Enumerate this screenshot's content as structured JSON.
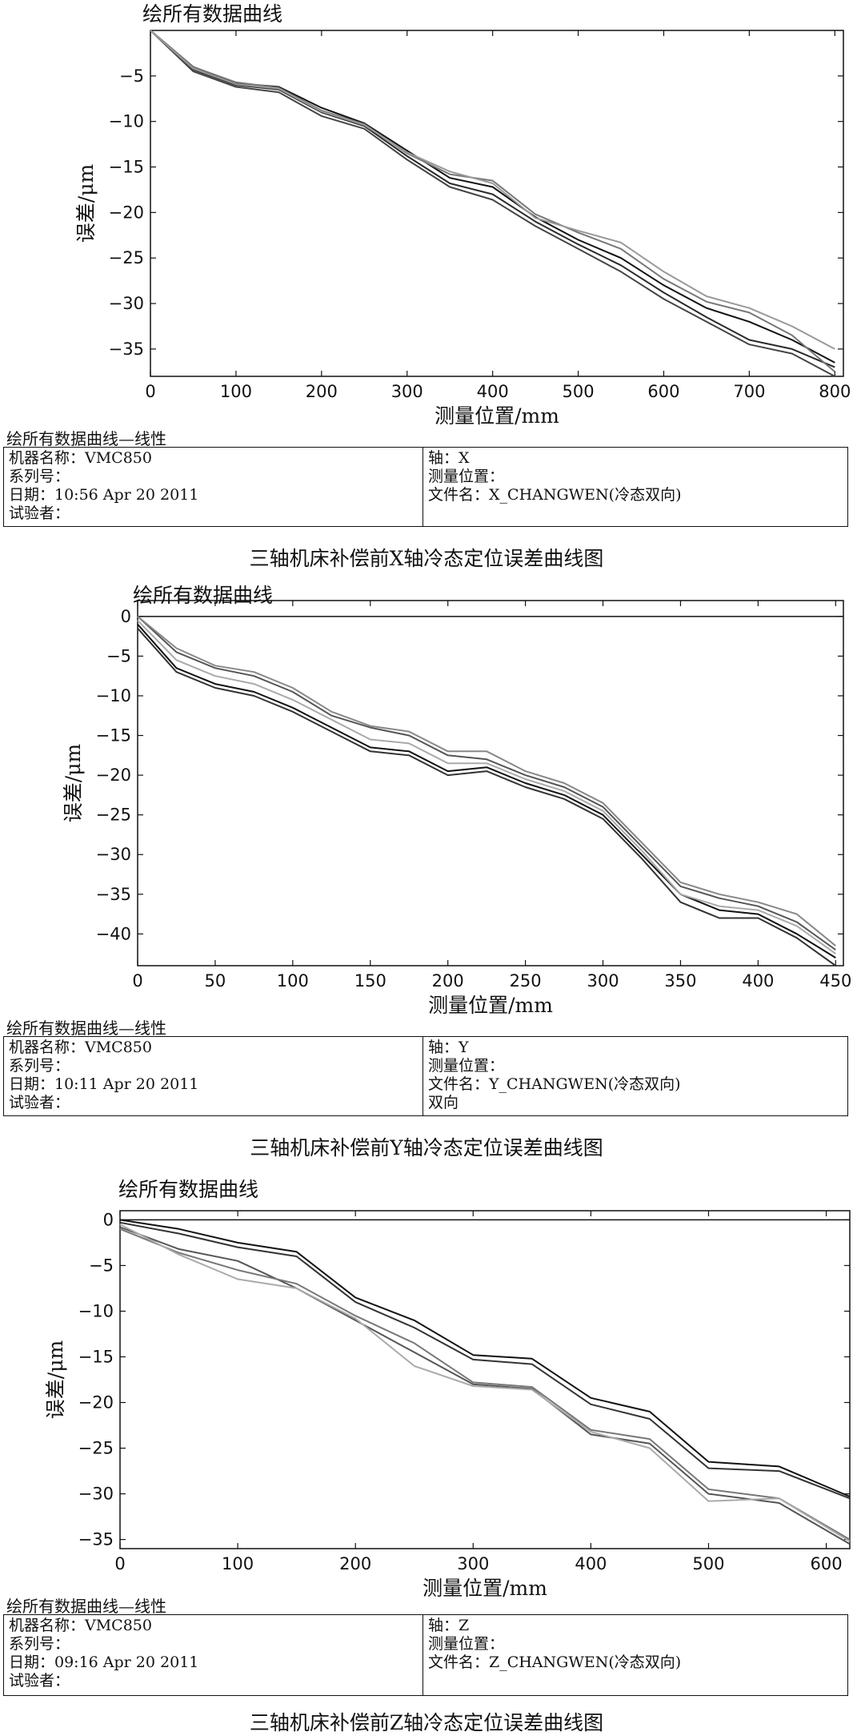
{
  "chart_data": [
    {
      "type": "line",
      "title": "绘所有数据曲线",
      "xlabel": "测量位置/mm",
      "ylabel": "误差/μm",
      "xlim": [
        0,
        810
      ],
      "ylim": [
        -38,
        0
      ],
      "xticks": [
        0,
        100,
        200,
        300,
        400,
        500,
        600,
        700,
        800
      ],
      "yticks": [
        -5,
        -10,
        -15,
        -20,
        -25,
        -30,
        -35
      ],
      "grid": false,
      "series": [
        {
          "x": [
            0,
            50,
            100,
            150,
            200,
            250,
            300,
            350,
            400,
            450,
            500,
            550,
            600,
            650,
            700,
            750,
            800
          ],
          "y": [
            0,
            -4,
            -5.8,
            -6.2,
            -8.5,
            -10.2,
            -13.2,
            -16.2,
            -17.2,
            -20.5,
            -23,
            -25,
            -28,
            -30.5,
            -32,
            -34,
            -36.5
          ],
          "color": "#111111"
        },
        {
          "x": [
            0,
            50,
            100,
            150,
            200,
            250,
            300,
            350,
            400,
            450,
            500,
            550,
            600,
            650,
            700,
            750,
            800
          ],
          "y": [
            0,
            -4.3,
            -6,
            -6.5,
            -9,
            -10.5,
            -13.8,
            -16.8,
            -18,
            -21,
            -23.5,
            -25.8,
            -28.8,
            -31.5,
            -34,
            -35,
            -37
          ],
          "color": "#2a2a2a"
        },
        {
          "x": [
            0,
            50,
            100,
            150,
            200,
            250,
            300,
            350,
            400,
            450,
            500,
            550,
            600,
            650,
            700,
            750,
            800
          ],
          "y": [
            0,
            -4.5,
            -6.2,
            -6.8,
            -9.4,
            -10.8,
            -14.2,
            -17.2,
            -18.6,
            -21.5,
            -24,
            -26.5,
            -29.5,
            -32,
            -34.5,
            -35.5,
            -38
          ],
          "color": "#444444"
        },
        {
          "x": [
            0,
            50,
            100,
            150,
            200,
            250,
            300,
            350,
            400,
            450,
            500,
            550,
            600,
            650,
            700,
            750,
            800
          ],
          "y": [
            0,
            -4,
            -5.7,
            -6.3,
            -8.8,
            -10.3,
            -13.5,
            -15.8,
            -16.5,
            -20.2,
            -22.2,
            -24,
            -27.3,
            -29.8,
            -31,
            -33.5,
            -37.5
          ],
          "color": "#777777"
        },
        {
          "x": [
            0,
            50,
            100,
            150,
            200,
            250,
            300,
            350,
            400,
            450,
            500,
            550,
            600,
            650,
            700,
            750,
            800
          ],
          "y": [
            0,
            -4.2,
            -5.9,
            -6.4,
            -8.9,
            -10.4,
            -13.4,
            -15.5,
            -16.8,
            -20.6,
            -22,
            -23.3,
            -26.5,
            -29.2,
            -30.5,
            -32.5,
            -35
          ],
          "color": "#999999"
        }
      ],
      "info_title": "绘所有数据曲线—线性",
      "info_left": [
        "机器名称：VMC850",
        "系列号：",
        "日期：10:56 Apr 20 2011",
        "试验者："
      ],
      "info_right": [
        "轴：X",
        "测量位置：",
        "文件名：X_CHANGWEN(冷态双向)"
      ],
      "caption": "三轴机床补偿前X轴冷态定位误差曲线图"
    },
    {
      "type": "line",
      "title": "绘所有数据曲线",
      "xlabel": "测量位置/mm",
      "ylabel": "误差/μm",
      "xlim": [
        0,
        455
      ],
      "ylim": [
        -44,
        2
      ],
      "xticks": [
        0,
        50,
        100,
        150,
        200,
        250,
        300,
        350,
        400,
        450
      ],
      "yticks": [
        0,
        -5,
        -10,
        -15,
        -20,
        -25,
        -30,
        -35,
        -40
      ],
      "grid": false,
      "series": [
        {
          "x": [
            0,
            25,
            50,
            75,
            100,
            125,
            150,
            175,
            200,
            225,
            250,
            275,
            300,
            325,
            350,
            375,
            400,
            425,
            450
          ],
          "y": [
            -1,
            -6.5,
            -8.5,
            -9.5,
            -11.5,
            -14,
            -16.5,
            -17,
            -19.5,
            -19,
            -21,
            -22.5,
            -25,
            -30,
            -35,
            -37,
            -37.5,
            -40,
            -43
          ],
          "color": "#111111"
        },
        {
          "x": [
            0,
            25,
            50,
            75,
            100,
            125,
            150,
            175,
            200,
            225,
            250,
            275,
            300,
            325,
            350,
            375,
            400,
            425,
            450
          ],
          "y": [
            -1.5,
            -7,
            -9,
            -10,
            -12,
            -14.5,
            -17,
            -17.5,
            -20,
            -19.5,
            -21.5,
            -23,
            -25.5,
            -30.5,
            -36,
            -38,
            -38,
            -40.5,
            -44
          ],
          "color": "#333333"
        },
        {
          "x": [
            0,
            25,
            50,
            75,
            100,
            125,
            150,
            175,
            200,
            225,
            250,
            275,
            300,
            325,
            350,
            375,
            400,
            425,
            450
          ],
          "y": [
            0,
            -4.5,
            -6.5,
            -7.5,
            -9.5,
            -12.5,
            -14,
            -15,
            -17.5,
            -18,
            -20,
            -21.5,
            -24,
            -29,
            -34,
            -35.5,
            -36.5,
            -38.5,
            -42
          ],
          "color": "#555555"
        },
        {
          "x": [
            0,
            25,
            50,
            75,
            100,
            125,
            150,
            175,
            200,
            225,
            250,
            275,
            300,
            325,
            350,
            375,
            400,
            425,
            450
          ],
          "y": [
            0,
            -4,
            -6.2,
            -7,
            -9,
            -12,
            -13.8,
            -14.5,
            -17,
            -17,
            -19.5,
            -21,
            -23.5,
            -28.5,
            -33.5,
            -35,
            -36,
            -37.5,
            -41.5
          ],
          "color": "#888888"
        },
        {
          "x": [
            0,
            25,
            50,
            75,
            100,
            125,
            150,
            175,
            200,
            225,
            250,
            275,
            300,
            325,
            350,
            375,
            400,
            425,
            450
          ],
          "y": [
            -0.5,
            -5.5,
            -7.5,
            -8.5,
            -10.5,
            -13,
            -15.5,
            -16,
            -18.5,
            -18.5,
            -20.5,
            -22,
            -24.5,
            -29.5,
            -35,
            -36.5,
            -37,
            -39,
            -42.5
          ],
          "color": "#aaaaaa"
        }
      ],
      "info_title": "绘所有数据曲线—线性",
      "info_left": [
        "机器名称：VMC850",
        "系列号：",
        "日期：10:11 Apr 20 2011",
        "试验者："
      ],
      "info_right": [
        "轴：Y",
        "测量位置：",
        "文件名：Y_CHANGWEN(冷态双向)",
        "双向"
      ],
      "caption": "三轴机床补偿前Y轴冷态定位误差曲线图"
    },
    {
      "type": "line",
      "title": "绘所有数据曲线",
      "xlabel": "测量位置/mm",
      "ylabel": "误差/μm",
      "xlim": [
        0,
        620
      ],
      "ylim": [
        -36,
        1
      ],
      "xticks": [
        0,
        100,
        200,
        300,
        400,
        500,
        600
      ],
      "yticks": [
        0,
        -5,
        -10,
        -15,
        -20,
        -25,
        -30,
        -35
      ],
      "grid": false,
      "series": [
        {
          "x": [
            0,
            50,
            100,
            150,
            200,
            250,
            300,
            350,
            400,
            450,
            500,
            560,
            620
          ],
          "y": [
            0,
            -1,
            -2.5,
            -3.5,
            -8.5,
            -11,
            -14.8,
            -15.2,
            -19.5,
            -21,
            -26.5,
            -27,
            -30.3
          ],
          "color": "#111111"
        },
        {
          "x": [
            0,
            50,
            100,
            150,
            200,
            250,
            300,
            350,
            400,
            450,
            500,
            560,
            620
          ],
          "y": [
            -0.3,
            -1.5,
            -3,
            -4,
            -9,
            -11.8,
            -15.3,
            -15.8,
            -20.2,
            -21.8,
            -27.2,
            -27.5,
            -30.5
          ],
          "color": "#333333"
        },
        {
          "x": [
            0,
            50,
            100,
            150,
            200,
            250,
            300,
            350,
            400,
            450,
            500,
            560,
            620
          ],
          "y": [
            -0.8,
            -3.2,
            -4.5,
            -7.5,
            -11,
            -14.5,
            -18,
            -18.5,
            -23.5,
            -24.5,
            -30,
            -31,
            -35.5
          ],
          "color": "#555555"
        },
        {
          "x": [
            0,
            50,
            100,
            150,
            200,
            250,
            300,
            350,
            400,
            450,
            500,
            560,
            620
          ],
          "y": [
            -1,
            -3.6,
            -5.5,
            -7,
            -10.5,
            -13.5,
            -17.8,
            -18.3,
            -23,
            -24,
            -29.5,
            -30.5,
            -35
          ],
          "color": "#777777"
        },
        {
          "x": [
            0,
            50,
            100,
            150,
            200,
            250,
            300,
            350,
            400,
            450,
            500,
            560,
            620
          ],
          "y": [
            -0.5,
            -3.8,
            -6.5,
            -7.5,
            -10.8,
            -16,
            -18.2,
            -18.6,
            -23.2,
            -25,
            -30.8,
            -30.5,
            -35.2
          ],
          "color": "#aaaaaa"
        }
      ],
      "info_title": "绘所有数据曲线—线性",
      "info_left": [
        "机器名称：VMC850",
        "系列号：",
        "日期：09:16 Apr 20 2011",
        "试验者："
      ],
      "info_right": [
        "轴：Z",
        "测量位置：",
        "文件名：Z_CHANGWEN(冷态双向)"
      ],
      "caption": "三轴机床补偿前Z轴冷态定位误差曲线图"
    }
  ]
}
